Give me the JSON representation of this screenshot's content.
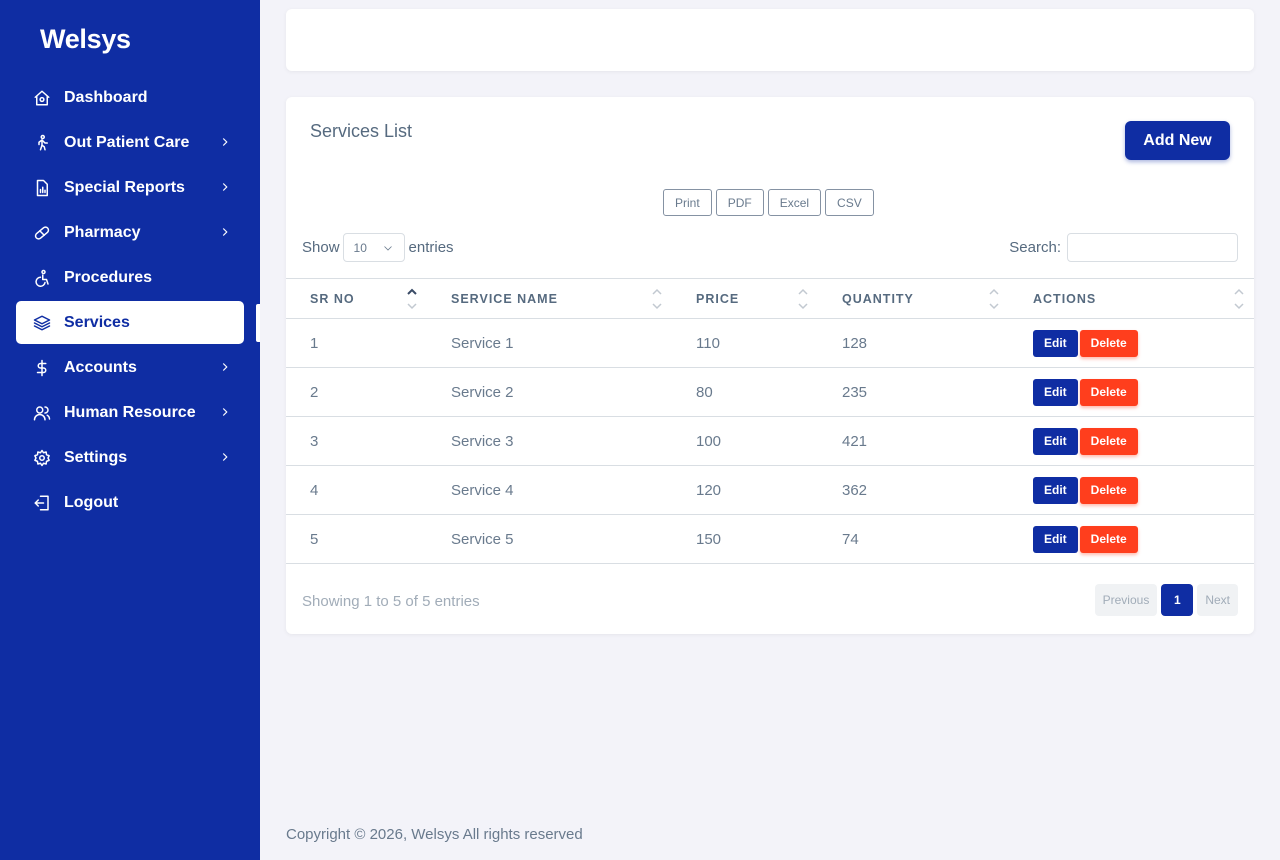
{
  "brand": "Welsys",
  "sidebar": {
    "items": [
      {
        "label": "Dashboard",
        "icon": "home-icon",
        "has_submenu": false,
        "active": false
      },
      {
        "label": "Out Patient Care",
        "icon": "walking-person-icon",
        "has_submenu": true,
        "active": false
      },
      {
        "label": "Special Reports",
        "icon": "report-icon",
        "has_submenu": true,
        "active": false
      },
      {
        "label": "Pharmacy",
        "icon": "pill-icon",
        "has_submenu": true,
        "active": false
      },
      {
        "label": "Procedures",
        "icon": "accessibility-icon",
        "has_submenu": false,
        "active": false
      },
      {
        "label": "Services",
        "icon": "layers-icon",
        "has_submenu": false,
        "active": true
      },
      {
        "label": "Accounts",
        "icon": "dollar-icon",
        "has_submenu": true,
        "active": false
      },
      {
        "label": "Human Resource",
        "icon": "users-icon",
        "has_submenu": true,
        "active": false
      },
      {
        "label": "Settings",
        "icon": "gear-icon",
        "has_submenu": true,
        "active": false
      },
      {
        "label": "Logout",
        "icon": "logout-icon",
        "has_submenu": false,
        "active": false
      }
    ]
  },
  "services": {
    "title": "Services List",
    "add_label": "Add New",
    "export": [
      "Print",
      "PDF",
      "Excel",
      "CSV"
    ],
    "show_label": "Show",
    "entries_value": "10",
    "entries_label": "entries",
    "search_label": "Search:",
    "columns": [
      "SR NO",
      "SERVICE NAME",
      "PRICE",
      "QUANTITY",
      "ACTIONS"
    ],
    "rows": [
      {
        "sr": "1",
        "name": "Service 1",
        "price": "110",
        "qty": "128"
      },
      {
        "sr": "2",
        "name": "Service 2",
        "price": "80",
        "qty": "235"
      },
      {
        "sr": "3",
        "name": "Service 3",
        "price": "100",
        "qty": "421"
      },
      {
        "sr": "4",
        "name": "Service 4",
        "price": "120",
        "qty": "362"
      },
      {
        "sr": "5",
        "name": "Service 5",
        "price": "150",
        "qty": "74"
      }
    ],
    "edit_label": "Edit",
    "delete_label": "Delete",
    "info": "Showing 1 to 5 of 5 entries",
    "pagination": {
      "prev": "Previous",
      "current": "1",
      "next": "Next"
    }
  },
  "footer": "Copyright © 2026, Welsys All rights reserved",
  "colors": {
    "primary": "#0f2da3",
    "danger": "#ff3e1d",
    "background": "#f3f3f9"
  }
}
